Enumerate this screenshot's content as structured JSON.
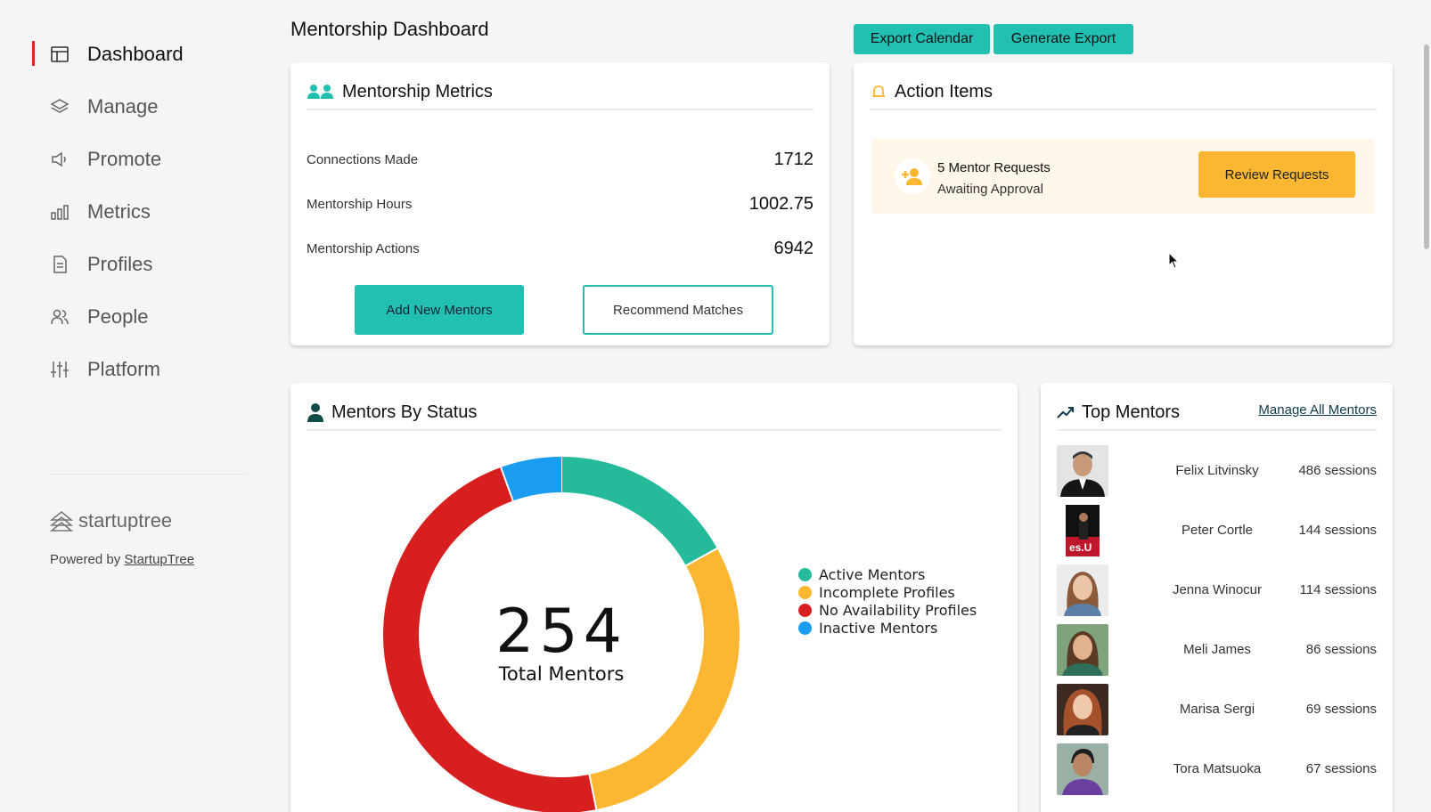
{
  "sidebar": {
    "items": [
      {
        "label": "Dashboard",
        "icon": "dashboard-icon",
        "active": true
      },
      {
        "label": "Manage",
        "icon": "layers-icon"
      },
      {
        "label": "Promote",
        "icon": "megaphone-icon"
      },
      {
        "label": "Metrics",
        "icon": "bar-chart-icon"
      },
      {
        "label": "Profiles",
        "icon": "document-icon"
      },
      {
        "label": "People",
        "icon": "people-icon"
      },
      {
        "label": "Platform",
        "icon": "sliders-icon"
      }
    ],
    "brand": "startuptree",
    "powered_prefix": "Powered by ",
    "powered_link": "StartupTree"
  },
  "header": {
    "title": "Mentorship Dashboard",
    "export_calendar": "Export Calendar",
    "generate_export": "Generate Export"
  },
  "metrics": {
    "title": "Mentorship Metrics",
    "rows": [
      {
        "label": "Connections Made",
        "value": "1712"
      },
      {
        "label": "Mentorship Hours",
        "value": "1002.75"
      },
      {
        "label": "Mentorship Actions",
        "value": "6942"
      }
    ],
    "add_button": "Add New Mentors",
    "recommend_button": "Recommend Matches"
  },
  "actions": {
    "title": "Action Items",
    "item_title": "5 Mentor Requests",
    "item_sub": "Awaiting Approval",
    "review_button": "Review Requests"
  },
  "status": {
    "title": "Mentors By Status",
    "total": "254",
    "total_label": "Total Mentors"
  },
  "chart_data": {
    "type": "pie",
    "categories": [
      "Active Mentors",
      "Incomplete Profiles",
      "No Availability Profiles",
      "Inactive Mentors"
    ],
    "values": [
      43,
      76,
      121,
      14
    ],
    "colors": [
      "#25bb9a",
      "#fbb731",
      "#d81f1f",
      "#1a9df0"
    ],
    "legend_position": "right"
  },
  "top_mentors": {
    "title": "Top Mentors",
    "manage_link": "Manage All Mentors",
    "mentors": [
      {
        "name": "Felix Litvinsky",
        "sessions": "486 sessions"
      },
      {
        "name": "Peter Cortle",
        "sessions": "144 sessions"
      },
      {
        "name": "Jenna Winocur",
        "sessions": "114 sessions"
      },
      {
        "name": "Meli James",
        "sessions": "86 sessions"
      },
      {
        "name": "Marisa Sergi",
        "sessions": "69 sessions"
      },
      {
        "name": "Tora Matsuoka",
        "sessions": "67 sessions"
      }
    ]
  },
  "colors": {
    "accent": "#22c0b3",
    "warning": "#fbb731",
    "active_indicator": "#e02424"
  }
}
